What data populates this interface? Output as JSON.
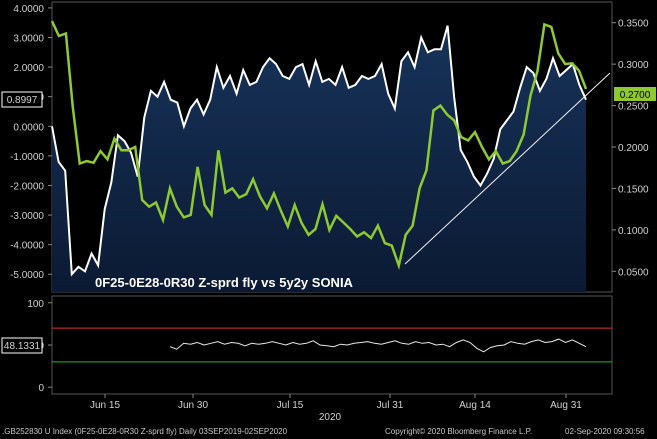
{
  "chart_data": [
    {
      "type": "line",
      "title": "0F25-0E28-0R30 Z-sprd fly vs 5y2y SONIA",
      "left_axis": {
        "ylim": [
          -5.6,
          4.2
        ],
        "ticks": [
          "4.0000",
          "3.0000",
          "2.0000",
          "1.0000",
          "0.0000",
          "-1.0000",
          "-2.0000",
          "-3.0000",
          "-4.0000",
          "-5.0000"
        ]
      },
      "right_axis": {
        "ylim": [
          0.025,
          0.375
        ],
        "ticks": [
          "0.3500",
          "0.3000",
          "0.2500",
          "0.2000",
          "0.1500",
          "0.1000",
          "0.0500"
        ]
      },
      "x_ticks": [
        "Jun 15",
        "Jun 30",
        "Jul 15",
        "Jul 31",
        "Aug 14",
        "Aug 31"
      ],
      "x_year": "2020",
      "last_value_left": "0.8997",
      "last_value_right": "0.2700",
      "series": [
        {
          "axis": "left",
          "color": "#ffffff",
          "values": [
            0.0,
            -1.2,
            -1.5,
            -5.0,
            -4.75,
            -4.9,
            -4.3,
            -4.7,
            -2.8,
            -1.9,
            -0.3,
            -0.5,
            -0.9,
            -1.7,
            0.3,
            1.2,
            1.0,
            1.5,
            0.9,
            0.8,
            0.0,
            0.6,
            0.9,
            0.4,
            0.9,
            2.0,
            1.3,
            1.7,
            1.1,
            1.9,
            1.4,
            1.5,
            2.0,
            2.3,
            2.1,
            1.7,
            1.6,
            2.0,
            2.1,
            1.4,
            2.2,
            1.5,
            1.6,
            1.4,
            2.0,
            1.3,
            1.4,
            1.7,
            1.6,
            1.7,
            2.1,
            1.1,
            0.6,
            2.2,
            2.5,
            2.0,
            3.0,
            2.5,
            2.6,
            2.6,
            3.4,
            1.0,
            -0.8,
            -1.2,
            -1.7,
            -2.0,
            -1.6,
            -1.1,
            -0.1,
            0.2,
            0.5,
            1.3,
            2.0,
            1.8,
            1.2,
            1.6,
            2.3,
            1.7,
            1.9,
            2.1,
            1.4,
            0.9
          ]
        },
        {
          "axis": "right",
          "color": "#8ec832",
          "values": [
            0.352,
            0.334,
            0.337,
            0.248,
            0.18,
            0.183,
            0.181,
            0.195,
            0.185,
            0.21,
            0.196,
            0.196,
            0.2,
            0.136,
            0.128,
            0.133,
            0.112,
            0.15,
            0.128,
            0.115,
            0.118,
            0.176,
            0.13,
            0.118,
            0.196,
            0.145,
            0.15,
            0.139,
            0.143,
            0.161,
            0.14,
            0.126,
            0.144,
            0.123,
            0.104,
            0.13,
            0.108,
            0.094,
            0.101,
            0.131,
            0.1,
            0.117,
            0.109,
            0.101,
            0.092,
            0.097,
            0.09,
            0.105,
            0.084,
            0.081,
            0.057,
            0.094,
            0.105,
            0.15,
            0.172,
            0.244,
            0.25,
            0.239,
            0.232,
            0.212,
            0.208,
            0.218,
            0.2,
            0.185,
            0.195,
            0.18,
            0.183,
            0.195,
            0.215,
            0.262,
            0.292,
            0.348,
            0.345,
            0.313,
            0.3,
            0.301,
            0.292,
            0.27
          ]
        }
      ]
    },
    {
      "type": "line",
      "last_value": "48.1331",
      "ylim": [
        -8,
        108
      ],
      "ticks": [
        "100",
        "50",
        "0"
      ],
      "upper_level": 70,
      "lower_level": 30,
      "values": [
        48,
        45,
        52,
        51,
        53,
        50,
        52,
        54,
        51,
        53,
        52,
        49,
        52,
        51,
        52,
        54,
        52,
        50,
        53,
        51,
        52,
        55,
        50,
        49,
        48,
        51,
        50,
        52,
        53,
        54,
        52,
        51,
        53,
        55,
        52,
        51,
        54,
        52,
        53,
        50,
        51,
        48,
        53,
        56,
        53,
        46,
        42,
        47,
        49,
        50,
        54,
        52,
        51,
        54,
        56,
        53,
        54,
        57,
        53,
        56,
        52,
        48
      ]
    }
  ],
  "footer": {
    "left": ".GB252830 U Index (0F25-0E28-0R30 Z-sprd fly)  Daily 03SEP2019-02SEP2020",
    "center": "Copyright© 2020 Bloomberg Finance L.P.",
    "right": "02-Sep-2020 09:30:56"
  }
}
